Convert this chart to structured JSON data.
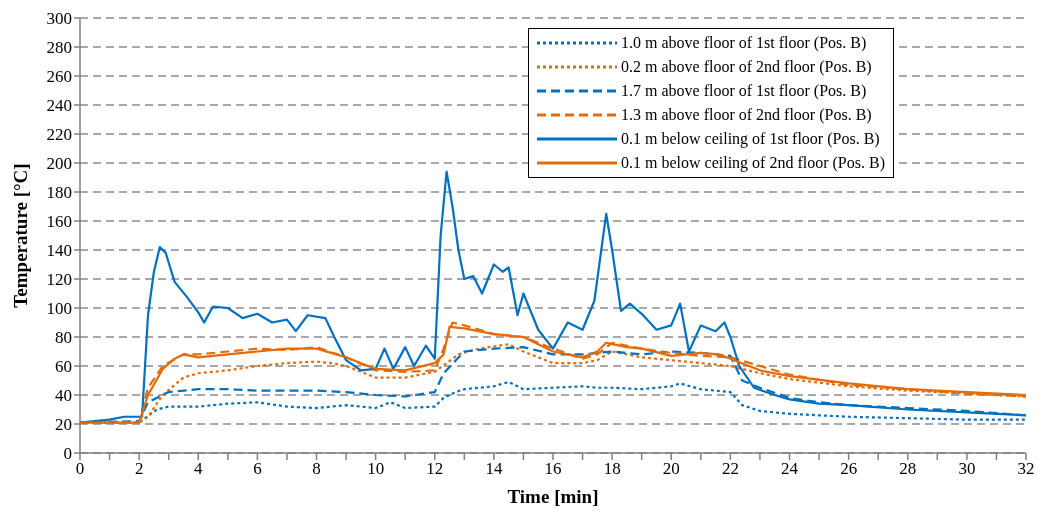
{
  "chart_data": {
    "type": "line",
    "xlabel": "Time [min]",
    "ylabel": "Temperature [°C]",
    "xlim": [
      0,
      32
    ],
    "ylim": [
      0,
      300
    ],
    "xticks": [
      0,
      {
        "value": 1,
        "label": null
      },
      2,
      {
        "value": 3,
        "label": null
      },
      4,
      {
        "value": 5,
        "label": null
      },
      6,
      {
        "value": 7,
        "label": null
      },
      8,
      {
        "value": 9,
        "label": null
      },
      10,
      {
        "value": 11,
        "label": null
      },
      12,
      {
        "value": 13,
        "label": null
      },
      14,
      {
        "value": 15,
        "label": null
      },
      16,
      {
        "value": 17,
        "label": null
      },
      18,
      {
        "value": 19,
        "label": null
      },
      20,
      {
        "value": 21,
        "label": null
      },
      22,
      {
        "value": 23,
        "label": null
      },
      24,
      {
        "value": 25,
        "label": null
      },
      26,
      {
        "value": 27,
        "label": null
      },
      28,
      {
        "value": 29,
        "label": null
      },
      30,
      {
        "value": 31,
        "label": null
      },
      32
    ],
    "yticks": [
      0,
      20,
      40,
      60,
      80,
      100,
      120,
      140,
      160,
      180,
      200,
      220,
      240,
      260,
      280,
      300
    ],
    "grid": "y",
    "legend": "top right",
    "marker": "none",
    "series": [
      {
        "name": "1.0 m above floor of 1st floor (Pos. B)",
        "color": "#0070c0",
        "line_style": "dotted",
        "x": [
          0,
          2,
          2.2,
          2.6,
          3,
          4,
          5,
          6,
          7,
          8,
          9,
          10,
          10.5,
          11,
          12,
          12.3,
          12.7,
          13,
          14,
          14.5,
          15,
          16,
          17,
          17.5,
          18,
          19,
          20,
          20.3,
          21,
          22,
          22.4,
          23,
          24,
          25,
          26,
          28,
          30,
          32
        ],
        "values": [
          21,
          21,
          24,
          30,
          32,
          32,
          34,
          35,
          32,
          31,
          33,
          31,
          35,
          31,
          32,
          38,
          42,
          44,
          46,
          49,
          44,
          45,
          46,
          45,
          45,
          44,
          46,
          48,
          44,
          42,
          33,
          29,
          27,
          26,
          25,
          24,
          23,
          23
        ]
      },
      {
        "name": "0.2 m above floor of 2nd floor (Pos. B)",
        "color": "#e36c09",
        "line_style": "dotted",
        "x": [
          0,
          2,
          2.3,
          2.8,
          3.5,
          4,
          5,
          6,
          7,
          8,
          8.5,
          9,
          10,
          11,
          12,
          12.4,
          12.8,
          13.5,
          14.5,
          15,
          16,
          17,
          17.5,
          18,
          19,
          20,
          21,
          22,
          23,
          24,
          26,
          28,
          30,
          32
        ],
        "values": [
          21,
          21,
          25,
          40,
          52,
          55,
          57,
          60,
          62,
          63,
          62,
          60,
          52,
          52,
          56,
          62,
          68,
          72,
          75,
          70,
          62,
          62,
          64,
          70,
          66,
          64,
          62,
          60,
          55,
          51,
          46,
          43,
          41,
          39
        ]
      },
      {
        "name": "1.7 m above floor of 1st floor (Pos. B)",
        "color": "#0070c0",
        "line_style": "dashed",
        "x": [
          0,
          2,
          2.3,
          3,
          4,
          5,
          6,
          7,
          8,
          9,
          10,
          11,
          12,
          12.3,
          13,
          14,
          15,
          16,
          17,
          18,
          19,
          20,
          21,
          22,
          22.4,
          23,
          24,
          25,
          26,
          28,
          30,
          32
        ],
        "values": [
          21,
          22,
          35,
          42,
          44,
          44,
          43,
          43,
          43,
          42,
          40,
          39,
          42,
          55,
          70,
          72,
          73,
          68,
          68,
          70,
          68,
          70,
          69,
          67,
          50,
          45,
          38,
          35,
          33,
          31,
          29,
          26
        ]
      },
      {
        "name": "1.3 m above floor of 2nd floor (Pos. B)",
        "color": "#e36c09",
        "line_style": "dashed",
        "x": [
          0,
          2,
          2.3,
          2.8,
          3.5,
          4,
          5,
          6,
          7,
          8,
          9,
          10,
          11,
          12,
          12.3,
          12.6,
          13,
          14,
          15,
          16,
          17,
          17.5,
          18,
          19,
          20,
          21,
          22,
          23,
          24,
          26,
          28,
          30,
          32
        ],
        "values": [
          21,
          21,
          45,
          60,
          68,
          68,
          70,
          72,
          71,
          73,
          66,
          57,
          56,
          57,
          72,
          90,
          88,
          82,
          80,
          72,
          65,
          68,
          76,
          72,
          69,
          67,
          66,
          60,
          54,
          47,
          44,
          41,
          39
        ]
      },
      {
        "name": "0.1 m below ceiling of 1st floor (Pos. B)",
        "color": "#0070c0",
        "line_style": "solid",
        "x": [
          0,
          1,
          1.5,
          2.1,
          2.3,
          2.5,
          2.7,
          2.9,
          3.2,
          3.6,
          4,
          4.2,
          4.5,
          5,
          5.5,
          6,
          6.5,
          7,
          7.3,
          7.7,
          8.3,
          8.6,
          9,
          9.5,
          10,
          10.3,
          10.6,
          11,
          11.3,
          11.7,
          12,
          12.2,
          12.4,
          12.6,
          12.8,
          13,
          13.3,
          13.6,
          14,
          14.3,
          14.5,
          14.8,
          15,
          15.5,
          16,
          16.5,
          17,
          17.4,
          17.8,
          18,
          18.3,
          18.6,
          19,
          19.5,
          20,
          20.3,
          20.6,
          21,
          21.5,
          21.8,
          22,
          22.3,
          22.8,
          23.5,
          24,
          25,
          26,
          28,
          30,
          32
        ],
        "values": [
          21,
          23,
          25,
          25,
          95,
          125,
          142,
          138,
          118,
          108,
          97,
          90,
          101,
          100,
          93,
          96,
          90,
          92,
          84,
          95,
          93,
          80,
          64,
          57,
          58,
          72,
          58,
          73,
          60,
          74,
          65,
          150,
          194,
          170,
          140,
          120,
          122,
          110,
          130,
          125,
          128,
          95,
          110,
          85,
          72,
          90,
          85,
          105,
          165,
          140,
          98,
          103,
          96,
          85,
          88,
          103,
          70,
          88,
          84,
          90,
          80,
          60,
          45,
          40,
          37,
          34,
          33,
          30,
          28,
          26
        ]
      },
      {
        "name": "0.1 m below ceiling of 2nd floor (Pos. B)",
        "color": "#e36c09",
        "line_style": "solid",
        "x": [
          0,
          2,
          2.3,
          2.8,
          3.2,
          3.5,
          4,
          5,
          6,
          7,
          8,
          9,
          10,
          11,
          12,
          12.3,
          12.5,
          13,
          14,
          15,
          16,
          17,
          17.5,
          17.8,
          18.5,
          19,
          20,
          21,
          21.6,
          22,
          23,
          24,
          26,
          28,
          30,
          32
        ],
        "values": [
          21,
          21,
          40,
          58,
          65,
          68,
          66,
          68,
          70,
          72,
          72,
          66,
          58,
          57,
          62,
          68,
          87,
          86,
          82,
          80,
          70,
          66,
          70,
          76,
          73,
          72,
          67,
          69,
          68,
          65,
          57,
          53,
          48,
          44,
          42,
          40
        ]
      }
    ]
  }
}
